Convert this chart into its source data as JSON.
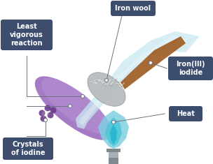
{
  "bg_color": "#ffffff",
  "label_bg_color": "#3d4d6e",
  "label_text_color": "#ffffff",
  "labels": {
    "least_vigorous": "Least\nvigorous\nreaction",
    "iron_wool": "Iron wool",
    "iron_iodide": "Iron(III)\niodide",
    "crystals": "Crystals\nof iodine",
    "heat": "Heat"
  },
  "purple_color": "#9b6dc0",
  "purple_light": "#c0a0dc",
  "tube_light_blue": "#c8e8f0",
  "tube_very_light": "#e0f2f8",
  "iron_wool_color": "#b8bcbe",
  "iron_wool_dark": "#909498",
  "brown_color": "#a0622a",
  "flame_outer": "#80d0e0",
  "flame_inner": "#28b8d0",
  "flame_mid": "#50c8d8",
  "burner_color": "#a8b0b8",
  "burner_dark": "#808890",
  "iodine_crystal_color": "#6a3a8a",
  "line_color": "#707080",
  "dot_color": "#ffffff"
}
